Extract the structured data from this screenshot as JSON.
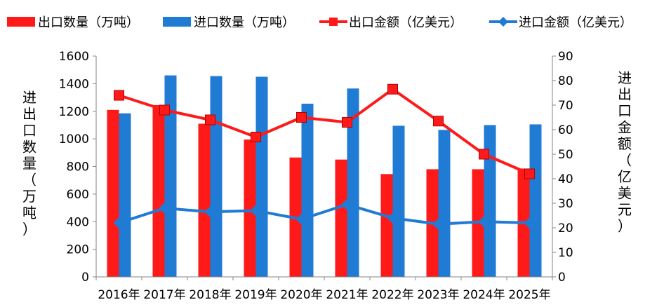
{
  "chart_data": {
    "type": "bar",
    "categories": [
      "2016年",
      "2017年",
      "2018年",
      "2019年",
      "2020年",
      "2021年",
      "2022年",
      "2023年",
      "2024年",
      "2025年"
    ],
    "series": [
      {
        "name": "出口数量（万吨）",
        "type": "bar",
        "axis": "left",
        "color": "#ff1a1a",
        "values": [
          1210,
          1245,
          1110,
          995,
          865,
          850,
          745,
          780,
          780,
          785
        ]
      },
      {
        "name": "进口数量（万吨）",
        "type": "bar",
        "axis": "left",
        "color": "#1f7bd4",
        "values": [
          1185,
          1460,
          1455,
          1450,
          1255,
          1365,
          1095,
          1065,
          1100,
          1105
        ]
      },
      {
        "name": "出口金额（亿美元）",
        "type": "line",
        "axis": "right",
        "color": "#ff1a1a",
        "marker": "square",
        "values": [
          74,
          68,
          64,
          57,
          65,
          63,
          76.5,
          63.5,
          50,
          42
        ]
      },
      {
        "name": "进口金额（亿美元）",
        "type": "line",
        "axis": "right",
        "color": "#1f7bd4",
        "marker": "diamond",
        "values": [
          22,
          28,
          26.5,
          27,
          23.5,
          29.5,
          24,
          21.5,
          22.5,
          22
        ]
      }
    ],
    "ylabel": "进出口数量（万吨）",
    "ylabel_right": "进出口金额（亿美元）",
    "ylim": [
      0,
      1600
    ],
    "yticks": [
      "0",
      "200",
      "400",
      "600",
      "800",
      "1000",
      "1200",
      "1400",
      "1600"
    ],
    "ylim_right": [
      0,
      90
    ],
    "yticks_right": [
      "0",
      "10",
      "20",
      "30",
      "40",
      "50",
      "60",
      "70",
      "80",
      "90"
    ],
    "grid": false,
    "legend_position": "top"
  }
}
